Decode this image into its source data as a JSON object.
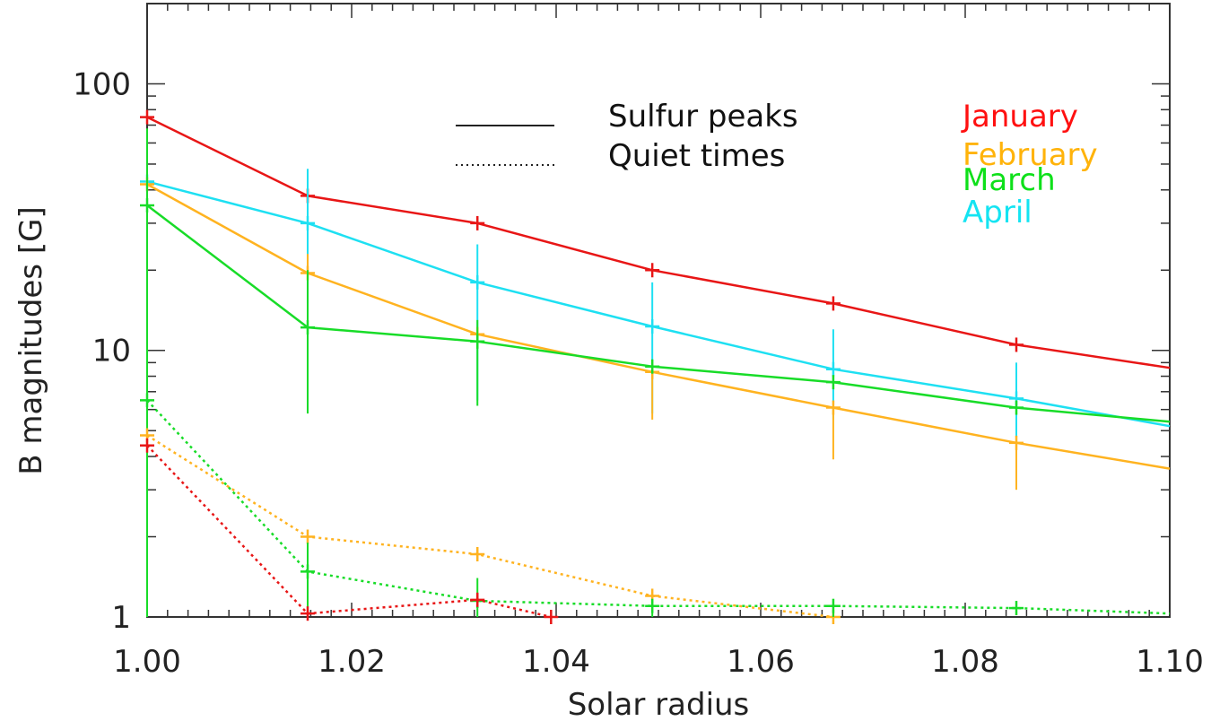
{
  "chart_data": {
    "type": "line",
    "xlabel": "Solar radius",
    "ylabel": "B magnitudes [G]",
    "xlim": [
      1.0,
      1.1
    ],
    "ylim": [
      1,
      200
    ],
    "yscale": "log",
    "grid": false,
    "x_ticks": [
      1.0,
      1.02,
      1.04,
      1.06,
      1.08,
      1.1
    ],
    "x_tick_labels": [
      "1.00",
      "1.02",
      "1.04",
      "1.06",
      "1.08",
      "1.10"
    ],
    "y_ticks": [
      1,
      10,
      100
    ],
    "y_tick_labels": [
      "1",
      "10",
      "100"
    ],
    "legend": {
      "placement": "top-center",
      "entries": [
        {
          "label": "Sulfur peaks",
          "style": "solid"
        },
        {
          "label": "Quiet times",
          "style": "dotted"
        }
      ]
    },
    "month_labels": {
      "placement": "top-right",
      "entries": [
        {
          "label": "January",
          "color": "#ff1010"
        },
        {
          "label": "February",
          "color": "#ffb30a"
        },
        {
          "label": "March",
          "color": "#0ee01a"
        },
        {
          "label": "April",
          "color": "#14e4f2"
        }
      ]
    },
    "series": [
      {
        "month": "January",
        "style": "solid",
        "color": "#e81616",
        "x": [
          1.0,
          1.0157,
          1.0323,
          1.0494,
          1.0671,
          1.085,
          1.1
        ],
        "y": [
          75,
          38,
          30,
          20,
          15,
          10.5,
          8.6
        ],
        "markers": [
          0,
          1,
          2,
          3,
          4,
          5
        ]
      },
      {
        "month": "April",
        "style": "solid",
        "color": "#1ee0f2",
        "x": [
          1.0,
          1.0157,
          1.0323,
          1.0494,
          1.0671,
          1.085,
          1.1
        ],
        "y": [
          43,
          30,
          18,
          12.3,
          8.5,
          6.6,
          5.2
        ],
        "err_low": [
          null,
          15,
          6.5,
          5.8,
          5.5,
          4.5,
          null
        ],
        "err_high": [
          null,
          48,
          25,
          18,
          12,
          9,
          null
        ]
      },
      {
        "month": "February",
        "style": "solid",
        "color": "#ffb320",
        "x": [
          1.0,
          1.0157,
          1.0323,
          1.0494,
          1.0671,
          1.085,
          1.1
        ],
        "y": [
          42,
          19.5,
          11.5,
          8.3,
          6.1,
          4.5,
          3.6
        ],
        "err_low": [
          null,
          null,
          null,
          5.5,
          3.9,
          3.0,
          null
        ],
        "err_high": [
          null,
          23,
          null,
          null,
          null,
          null,
          null
        ]
      },
      {
        "month": "March",
        "style": "solid",
        "color": "#18dc28",
        "x": [
          1.0,
          1.0157,
          1.0323,
          1.0494,
          1.0671,
          1.085,
          1.1
        ],
        "y": [
          35,
          12.2,
          10.8,
          8.7,
          7.6,
          6.1,
          5.4
        ],
        "err_low": [
          1,
          5.8,
          6.2,
          null,
          null,
          null,
          null
        ],
        "err_high": [
          68,
          20,
          13,
          null,
          null,
          null,
          null
        ]
      },
      {
        "month": "February",
        "style": "dotted",
        "color": "#ffb320",
        "x": [
          1.0,
          1.0157,
          1.0323,
          1.0494,
          1.0671
        ],
        "y": [
          4.8,
          2.0,
          1.72,
          1.2,
          1.0
        ]
      },
      {
        "month": "March",
        "style": "dotted",
        "color": "#18dc28",
        "x": [
          1.0,
          1.0157,
          1.0323,
          1.0494,
          1.0671,
          1.085,
          1.1
        ],
        "y": [
          6.5,
          1.48,
          1.15,
          1.1,
          1.1,
          1.08,
          1.03
        ],
        "err_low": [
          null,
          1.0,
          1.0,
          1.0,
          1.0,
          null,
          null
        ],
        "err_high": [
          null,
          1.9,
          1.4,
          1.15,
          1.16,
          null,
          null
        ]
      },
      {
        "month": "January",
        "style": "dotted",
        "color": "#e81616",
        "x": [
          1.0,
          1.0157,
          1.0323,
          1.0395
        ],
        "y": [
          4.4,
          1.03,
          1.16,
          1.0
        ]
      }
    ]
  }
}
